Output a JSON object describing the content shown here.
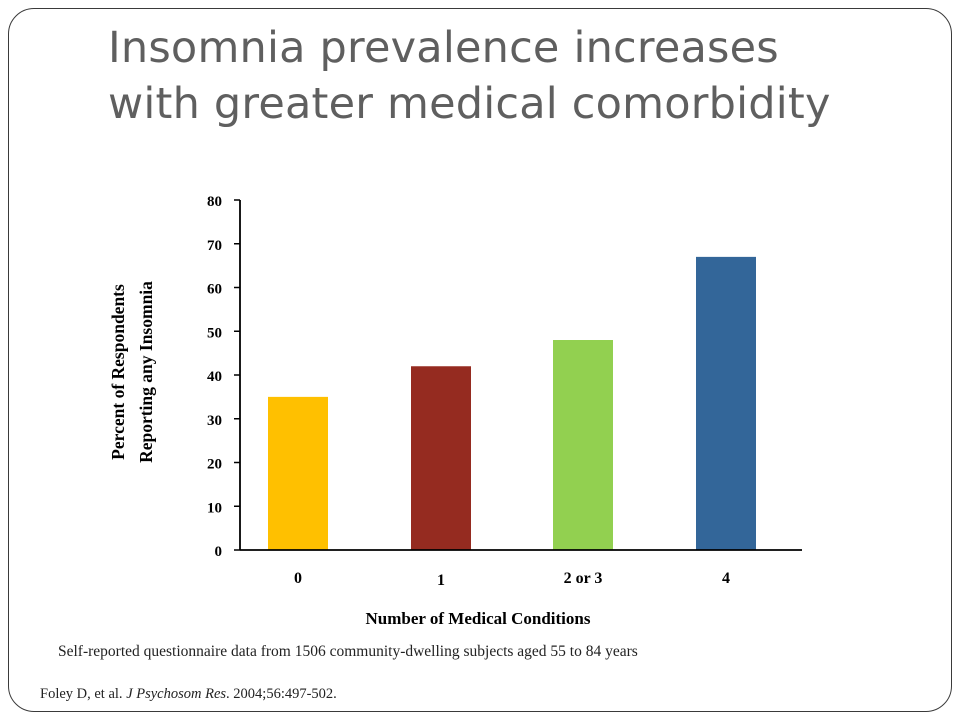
{
  "slide": {
    "title_line1": "Insomnia prevalence increases",
    "title_line2": "with greater medical comorbidity",
    "note": "Self-reported questionnaire data from 1506  community-dwelling subjects aged 55 to 84 years",
    "citation_pre": "Foley D, et al. ",
    "citation_journal": "J Psychosom Res",
    "citation_post": ". 2004;56:497-502.",
    "title_color": "#5f5f5f"
  },
  "chart_data": {
    "type": "bar",
    "categories": [
      "0",
      "1",
      "2 or 3",
      "4"
    ],
    "values": [
      35,
      42,
      48,
      67
    ],
    "colors": [
      "#FFC000",
      "#952B20",
      "#92D050",
      "#336699"
    ],
    "xlabel": "Number of Medical Conditions",
    "ylabel_line1": "Percent of Respondents",
    "ylabel_line2": "Reporting any Insomnia",
    "ylim": [
      0,
      80
    ],
    "yticks": [
      0,
      10,
      20,
      30,
      40,
      50,
      60,
      70,
      80
    ],
    "grid": false,
    "legend": "none"
  }
}
